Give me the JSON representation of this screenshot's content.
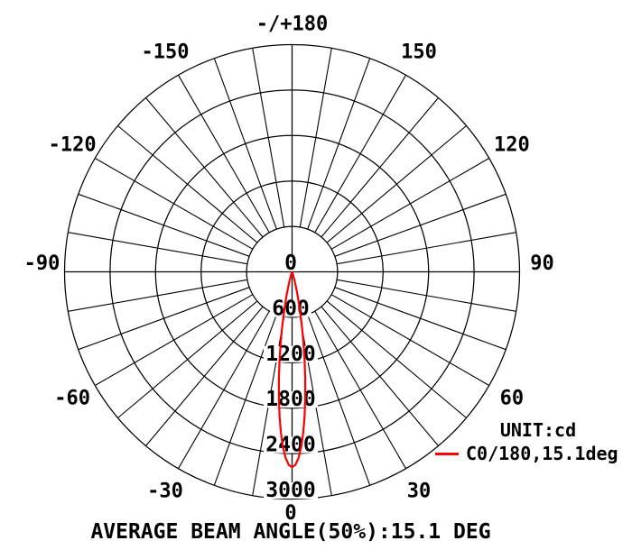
{
  "chart_data": {
    "type": "line",
    "subtype": "polar-intensity-distribution",
    "title": "AVERAGE BEAM ANGLE(50%):15.1 DEG",
    "unit_label": "UNIT:cd",
    "r_max": 3000,
    "ring_step": 600,
    "spoke_step_deg": 10,
    "grid_on": true,
    "legend_position": "right-bottom",
    "grid_color": "#000000",
    "text_color": "#000000",
    "rings_cd": [
      600,
      1200,
      1800,
      2400,
      3000
    ],
    "radial_ticks": [
      {
        "value": 0,
        "label": "0"
      },
      {
        "value": 600,
        "label": "600"
      },
      {
        "value": 1200,
        "label": "1200"
      },
      {
        "value": 1800,
        "label": "1800"
      },
      {
        "value": 2400,
        "label": "2400"
      },
      {
        "value": 3000,
        "label": "3000"
      }
    ],
    "angle_labels": [
      {
        "angle": 180,
        "label": "-/+180"
      },
      {
        "angle": -150,
        "label": "-150"
      },
      {
        "angle": 150,
        "label": "150"
      },
      {
        "angle": -120,
        "label": "-120"
      },
      {
        "angle": 120,
        "label": "120"
      },
      {
        "angle": -90,
        "label": "-90"
      },
      {
        "angle": 90,
        "label": "90"
      },
      {
        "angle": -60,
        "label": "-60"
      },
      {
        "angle": 60,
        "label": "60"
      },
      {
        "angle": -30,
        "label": "-30"
      },
      {
        "angle": 30,
        "label": "30"
      },
      {
        "angle": 0,
        "label": "0"
      }
    ],
    "series": [
      {
        "name": "C0/180,15.1deg",
        "color": "#ff0000",
        "peak_cd": 2580,
        "beam_angle_deg": 15.1,
        "points": [
          [
            -30,
            0
          ],
          [
            -26,
            1
          ],
          [
            -24,
            2
          ],
          [
            -22,
            6
          ],
          [
            -20,
            20
          ],
          [
            -18,
            50
          ],
          [
            -16,
            115
          ],
          [
            -15,
            167
          ],
          [
            -14,
            238
          ],
          [
            -13,
            331
          ],
          [
            -12,
            448
          ],
          [
            -11,
            593
          ],
          [
            -10,
            765
          ],
          [
            -9,
            964
          ],
          [
            -8,
            1185
          ],
          [
            -7,
            1422
          ],
          [
            -6,
            1666
          ],
          [
            -5,
            1904
          ],
          [
            -4,
            2124
          ],
          [
            -3,
            2313
          ],
          [
            -2,
            2458
          ],
          [
            -1,
            2549
          ],
          [
            0,
            2580
          ],
          [
            1,
            2549
          ],
          [
            2,
            2458
          ],
          [
            3,
            2313
          ],
          [
            4,
            2124
          ],
          [
            5,
            1904
          ],
          [
            6,
            1666
          ],
          [
            7,
            1422
          ],
          [
            8,
            1185
          ],
          [
            9,
            964
          ],
          [
            10,
            765
          ],
          [
            11,
            593
          ],
          [
            12,
            448
          ],
          [
            13,
            331
          ],
          [
            14,
            238
          ],
          [
            15,
            167
          ],
          [
            16,
            115
          ],
          [
            18,
            50
          ],
          [
            20,
            20
          ],
          [
            22,
            6
          ],
          [
            24,
            2
          ],
          [
            26,
            1
          ],
          [
            30,
            0
          ]
        ]
      }
    ]
  }
}
